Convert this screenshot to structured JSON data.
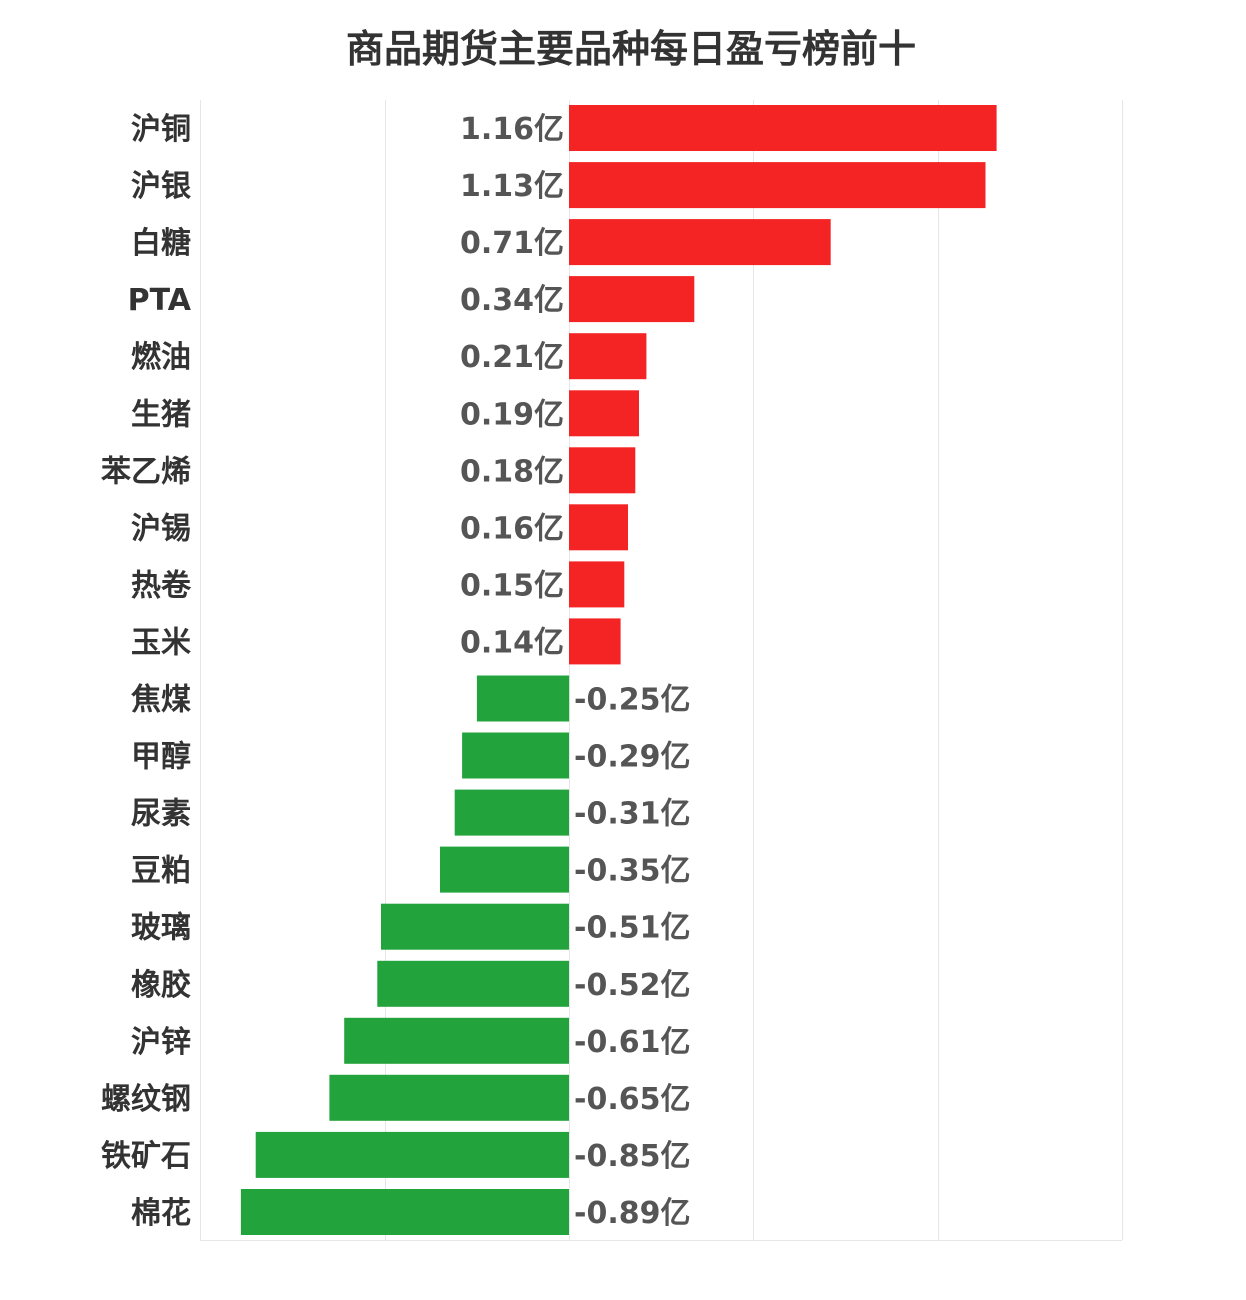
{
  "title": "商品期货主要品种每日盈亏榜前十",
  "chart_data": {
    "type": "bar",
    "orientation": "horizontal",
    "title": "商品期货主要品种每日盈亏榜前十",
    "unit": "亿",
    "categories": [
      "沪铜",
      "沪银",
      "白糖",
      "PTA",
      "燃油",
      "生猪",
      "苯乙烯",
      "沪锡",
      "热卷",
      "玉米",
      "焦煤",
      "甲醇",
      "尿素",
      "豆粕",
      "玻璃",
      "橡胶",
      "沪锌",
      "螺纹钢",
      "铁矿石",
      "棉花"
    ],
    "values": [
      1.16,
      1.13,
      0.71,
      0.34,
      0.21,
      0.19,
      0.18,
      0.16,
      0.15,
      0.14,
      -0.25,
      -0.29,
      -0.31,
      -0.35,
      -0.51,
      -0.52,
      -0.61,
      -0.65,
      -0.85,
      -0.89
    ],
    "value_labels": [
      "1.16亿",
      "1.13亿",
      "0.71亿",
      "0.34亿",
      "0.21亿",
      "0.19亿",
      "0.18亿",
      "0.16亿",
      "0.15亿",
      "0.14亿",
      "-0.25亿",
      "-0.29亿",
      "-0.31亿",
      "-0.35亿",
      "-0.51亿",
      "-0.52亿",
      "-0.61亿",
      "-0.65亿",
      "-0.85亿",
      "-0.89亿"
    ],
    "xlim": [
      -1.0,
      1.5
    ],
    "grid": true,
    "legend": "none",
    "colors": {
      "positive": "#f42424",
      "negative": "#22a33b",
      "grid": "#e6e6e6",
      "label": "#333333",
      "value": "#555555"
    }
  }
}
